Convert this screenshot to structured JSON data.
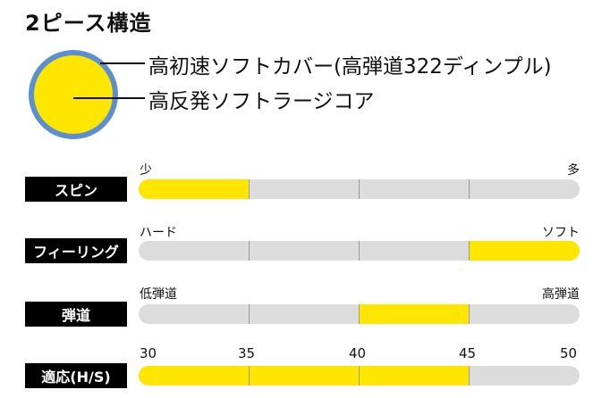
{
  "title": "2ピース構造",
  "ball": {
    "cover_color": "#5b8fd1",
    "core_color": "#ffe600",
    "callouts": {
      "cover": "高初速ソフトカバー(高弾道322ディンプル)",
      "core": "高反発ソフトラージコア"
    }
  },
  "rows": [
    {
      "label": "スピン",
      "left_label": "少",
      "right_label": "多",
      "filled_segment": 1
    },
    {
      "label": "フィーリング",
      "left_label": "ハード",
      "right_label": "ソフト",
      "filled_segment": 4
    },
    {
      "label": "弾道",
      "left_label": "低弾道",
      "right_label": "高弾道",
      "filled_segment": 3
    },
    {
      "label": "適応(H/S)",
      "scale": [
        "30",
        "35",
        "40",
        "45",
        "50"
      ],
      "range": [
        30,
        45
      ]
    }
  ],
  "colors": {
    "fill": "#ffe600",
    "track": "#dcdcdc",
    "label_bg": "#000000"
  }
}
